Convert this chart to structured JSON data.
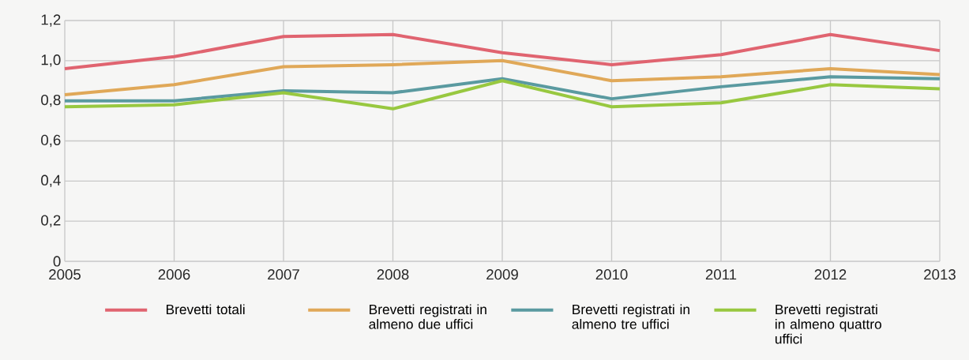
{
  "chart_data": {
    "type": "line",
    "x": [
      2005,
      2006,
      2007,
      2008,
      2009,
      2010,
      2011,
      2012,
      2013
    ],
    "xlim": [
      2005,
      2013
    ],
    "xticks": [
      2005,
      2006,
      2007,
      2008,
      2009,
      2010,
      2011,
      2012,
      2013
    ],
    "ylim": [
      0,
      1.2
    ],
    "yticks": [
      0,
      {
        "value": 0.2,
        "label": "0,2"
      },
      {
        "value": 0.4,
        "label": "0,4"
      },
      {
        "value": 0.6,
        "label": "0,6"
      },
      {
        "value": 0.8,
        "label": "0,8"
      },
      {
        "value": 1.0,
        "label": "1,0"
      },
      {
        "value": 1.2,
        "label": "1,2"
      }
    ],
    "grid": true,
    "legend": "bottom",
    "marker": "none",
    "line_style": "solid",
    "series": [
      {
        "name": "Brevetti totali",
        "color": "#e06470",
        "values": [
          0.96,
          1.02,
          1.12,
          1.13,
          1.04,
          0.98,
          1.03,
          1.13,
          1.05
        ]
      },
      {
        "name": "Brevetti registrati in almeno due uffici",
        "color": "#e0a858",
        "values": [
          0.83,
          0.88,
          0.97,
          0.98,
          1.0,
          0.9,
          0.92,
          0.96,
          0.93
        ]
      },
      {
        "name": "Brevetti registrati in almeno tre uffici",
        "color": "#5a9aa0",
        "values": [
          0.8,
          0.8,
          0.85,
          0.84,
          0.91,
          0.81,
          0.87,
          0.92,
          0.91
        ]
      },
      {
        "name": "Brevetti registrati in almeno quattro uffici",
        "color": "#98c840",
        "values": [
          0.77,
          0.78,
          0.84,
          0.76,
          0.9,
          0.77,
          0.79,
          0.88,
          0.86
        ]
      }
    ]
  }
}
